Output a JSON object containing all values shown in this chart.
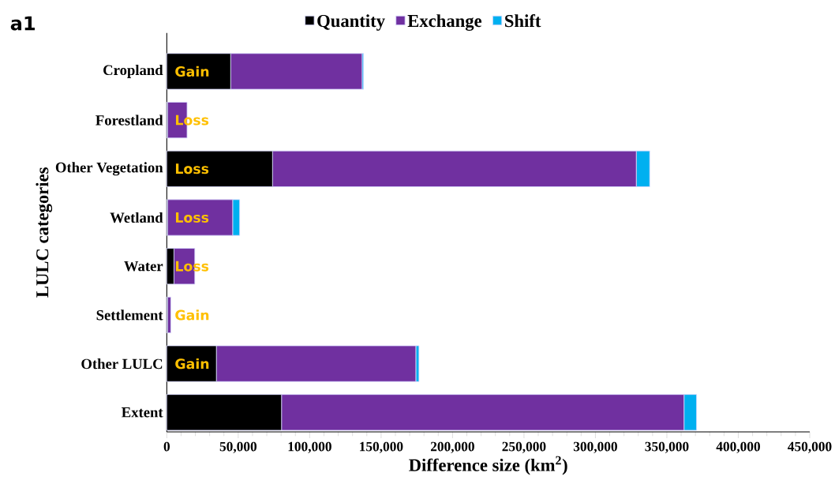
{
  "chart_data": {
    "type": "bar",
    "orientation": "horizontal",
    "stacked": true,
    "xlabel": "Difference size (km$^{2}$)",
    "ylabel": "LULC categories",
    "categories": [
      "Cropland",
      "Forestland",
      "Other Vegetation",
      "Wetland",
      "Water",
      "Settlement",
      "Other LULC",
      "Extent"
    ],
    "series": [
      {
        "name": "Quantity",
        "color": "#000000",
        "values": [
          44700,
          500,
          74000,
          500,
          5000,
          500,
          34700,
          80300
        ]
      },
      {
        "name": "Exchange",
        "color": "#7030a0",
        "values": [
          92000,
          13700,
          254600,
          45600,
          14600,
          2300,
          139600,
          281700
        ]
      },
      {
        "name": "Shift",
        "color": "#00b0f0",
        "values": [
          1000,
          0,
          9400,
          4900,
          0,
          0,
          2200,
          8800
        ]
      }
    ],
    "xlim": [
      0,
      450000
    ],
    "xticks": [
      0,
      {
        "value": 50000,
        "label": "50,000"
      },
      {
        "value": 100000,
        "label": "100,000"
      },
      {
        "value": 150000,
        "label": "150,000"
      },
      {
        "value": 200000,
        "label": "200,000"
      },
      {
        "value": 250000,
        "label": "250,000"
      },
      {
        "value": 300000,
        "label": "300,000"
      },
      {
        "value": 350000,
        "label": "350,000"
      },
      {
        "value": 400000,
        "label": "400,000"
      },
      {
        "value": 450000,
        "label": "450,000"
      }
    ],
    "legend": "top",
    "grid": false,
    "annotations": [
      "a1",
      "Gain",
      "Loss",
      "Loss",
      "Loss",
      "Loss",
      "Gain",
      "Gain"
    ]
  }
}
